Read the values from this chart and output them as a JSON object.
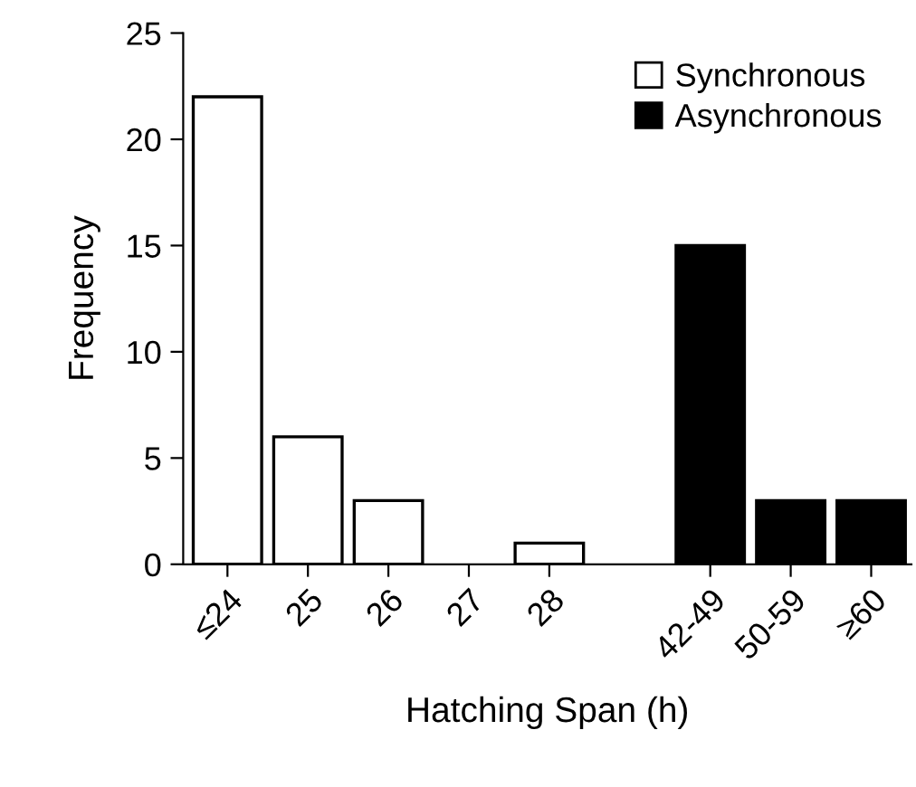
{
  "chart_data": {
    "type": "bar",
    "xlabel": "Hatching Span (h)",
    "ylabel": "Frequency",
    "categories": [
      "≤24",
      "25",
      "26",
      "27",
      "28",
      null,
      "42-49",
      "50-59",
      "≥60"
    ],
    "series": [
      {
        "name": "Synchronous",
        "color": "#ffffff",
        "values": [
          22,
          6,
          3,
          0,
          1,
          null,
          null,
          null,
          null
        ]
      },
      {
        "name": "Asynchronous",
        "color": "#000000",
        "values": [
          null,
          null,
          null,
          null,
          null,
          null,
          15,
          3,
          3
        ]
      }
    ],
    "ylim": [
      0,
      25
    ],
    "yticks": [
      0,
      5,
      10,
      15,
      20,
      25
    ],
    "grid": false,
    "legend": "top right"
  }
}
